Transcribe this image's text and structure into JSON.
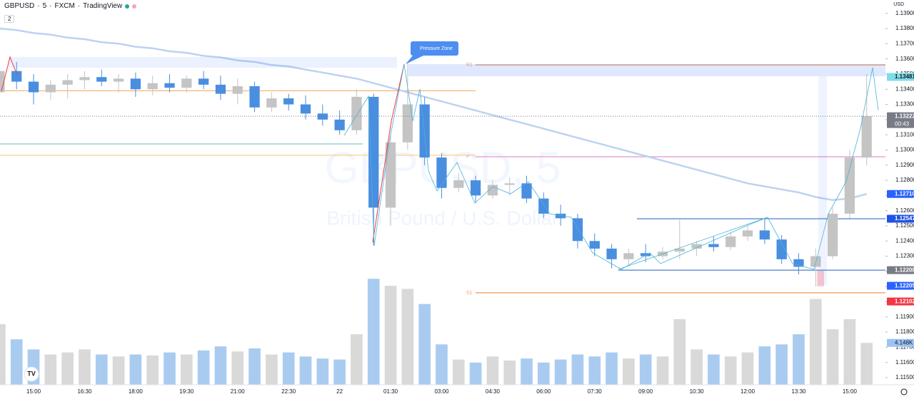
{
  "header": {
    "symbol": "GBPUSD",
    "interval": "5",
    "exchange": "FXCM",
    "source": "TradingView",
    "legend_count": "2",
    "currency": "USD"
  },
  "watermark": {
    "title": "GBPUSD, 5",
    "subtitle": "British Pound / U.S. Dollar"
  },
  "chart_data": {
    "type": "candlestick",
    "annotation": "Pressure Zone",
    "up_color": "#c4c4c4",
    "down_color": "#4a8ee0",
    "categories": [
      null,
      null,
      "15:00",
      null,
      null,
      "16:30",
      null,
      null,
      "18:00",
      null,
      null,
      "19:30",
      null,
      null,
      "21:00",
      null,
      null,
      "22:30",
      null,
      null,
      "22",
      null,
      null,
      "01:30",
      null,
      null,
      "03:00",
      null,
      null,
      "04:30",
      null,
      null,
      "06:00",
      null,
      null,
      "07:30",
      null,
      null,
      "09:00",
      null,
      null,
      "10:30",
      null,
      null,
      "12:00",
      null,
      null,
      "13:30",
      null,
      null,
      "15:00",
      null
    ],
    "open": [
      1.1338,
      1.1352,
      1.1345,
      1.1338,
      1.1343,
      1.1346,
      1.1348,
      1.1345,
      1.1347,
      1.134,
      1.1344,
      1.1341,
      1.1347,
      1.1343,
      1.1337,
      1.1342,
      1.1328,
      1.1334,
      1.133,
      1.1324,
      1.132,
      1.1313,
      1.1335,
      1.1262,
      1.1305,
      1.133,
      1.1295,
      1.1275,
      1.128,
      1.127,
      1.1277,
      1.1278,
      1.1268,
      1.1258,
      1.1255,
      1.124,
      1.1235,
      1.1228,
      1.1232,
      1.123,
      1.1233,
      1.1235,
      1.1238,
      1.1236,
      1.1243,
      1.1247,
      1.1241,
      1.1228,
      1.1223,
      1.123,
      1.1258,
      1.1295
    ],
    "high": [
      1.1357,
      1.1358,
      1.135,
      1.1346,
      1.135,
      1.1352,
      1.1353,
      1.135,
      1.1351,
      1.1349,
      1.135,
      1.1349,
      1.1352,
      1.1349,
      1.1347,
      1.1345,
      1.1338,
      1.1337,
      1.1336,
      1.133,
      1.1326,
      1.134,
      1.1337,
      1.131,
      1.1358,
      1.1335,
      1.1298,
      1.1285,
      1.1283,
      1.128,
      1.1282,
      1.1283,
      1.1272,
      1.1264,
      1.1258,
      1.1245,
      1.1238,
      1.1235,
      1.1238,
      1.1236,
      1.1254,
      1.124,
      1.1243,
      1.1246,
      1.125,
      1.1255,
      1.1244,
      1.1232,
      1.1235,
      1.1262,
      1.13,
      1.135
    ],
    "low": [
      1.1335,
      1.134,
      1.133,
      1.1333,
      1.1334,
      1.134,
      1.1342,
      1.1338,
      1.1335,
      1.1336,
      1.1338,
      1.1338,
      1.134,
      1.1333,
      1.133,
      1.1325,
      1.1325,
      1.1326,
      1.132,
      1.1316,
      1.131,
      1.131,
      1.1237,
      1.125,
      1.13,
      1.129,
      1.1268,
      1.1272,
      1.1265,
      1.1268,
      1.127,
      1.1265,
      1.1255,
      1.125,
      1.1235,
      1.123,
      1.1222,
      1.1224,
      1.1226,
      1.1228,
      1.1228,
      1.123,
      1.1233,
      1.1234,
      1.124,
      1.1238,
      1.1225,
      1.1218,
      1.121,
      1.1228,
      1.1255,
      1.129
    ],
    "close": [
      1.1352,
      1.1345,
      1.1338,
      1.1343,
      1.1346,
      1.1348,
      1.1345,
      1.1347,
      1.134,
      1.1344,
      1.1341,
      1.1347,
      1.1343,
      1.1337,
      1.1342,
      1.1328,
      1.1334,
      1.133,
      1.1324,
      1.132,
      1.1313,
      1.1335,
      1.1262,
      1.1305,
      1.133,
      1.1295,
      1.1275,
      1.128,
      1.127,
      1.1277,
      1.1278,
      1.1268,
      1.1258,
      1.1255,
      1.124,
      1.1235,
      1.1228,
      1.1232,
      1.123,
      1.1233,
      1.1235,
      1.1238,
      1.1236,
      1.1243,
      1.1247,
      1.1241,
      1.1228,
      1.1223,
      1.123,
      1.1258,
      1.1295,
      1.13222
    ],
    "ylim": [
      1.11453,
      1.13988
    ],
    "yticks": [
      {
        "value": 1.115,
        "label": "1.11500"
      },
      {
        "value": 1.116,
        "label": "1.11600"
      },
      {
        "value": 1.117,
        "label": "1.11700"
      },
      {
        "value": 1.118,
        "label": "1.11800"
      },
      {
        "value": 1.119,
        "label": "1.11900"
      },
      {
        "value": 1.12,
        "label": "1.12000"
      },
      {
        "value": 1.121,
        "label": "1.12100"
      },
      {
        "value": 1.122,
        "label": "1.12200"
      },
      {
        "value": 1.123,
        "label": "1.12300"
      },
      {
        "value": 1.124,
        "label": "1.12400"
      },
      {
        "value": 1.125,
        "label": "1.12500"
      },
      {
        "value": 1.126,
        "label": "1.12600"
      },
      {
        "value": 1.127,
        "label": "1.12700"
      },
      {
        "value": 1.128,
        "label": "1.12800"
      },
      {
        "value": 1.129,
        "label": "1.12900"
      },
      {
        "value": 1.13,
        "label": "1.13000"
      },
      {
        "value": 1.131,
        "label": "1.13100"
      },
      {
        "value": 1.132,
        "label": "1.13200"
      },
      {
        "value": 1.133,
        "label": "1.13300"
      },
      {
        "value": 1.134,
        "label": "1.13400"
      },
      {
        "value": 1.135,
        "label": "1.13500"
      },
      {
        "value": 1.136,
        "label": "1.13600"
      },
      {
        "value": 1.137,
        "label": "1.13700"
      },
      {
        "value": 1.138,
        "label": "1.13800"
      },
      {
        "value": 1.139,
        "label": "1.13900"
      }
    ],
    "moving_average": {
      "color": "#bcd3f0",
      "values": [
        1.138,
        1.1379,
        1.1377,
        1.1376,
        1.1374,
        1.1373,
        1.1371,
        1.137,
        1.1368,
        1.1367,
        1.1365,
        1.1364,
        1.1362,
        1.1361,
        1.1359,
        1.1358,
        1.1356,
        1.1355,
        1.1353,
        1.1351,
        1.1349,
        1.1347,
        1.1344,
        1.1341,
        1.1338,
        1.1335,
        1.1332,
        1.1329,
        1.1326,
        1.1323,
        1.132,
        1.1317,
        1.1314,
        1.1311,
        1.1308,
        1.1305,
        1.1302,
        1.1299,
        1.1296,
        1.1293,
        1.129,
        1.1287,
        1.1284,
        1.1281,
        1.1278,
        1.1276,
        1.1274,
        1.1272,
        1.1269,
        1.1267,
        1.1268,
        1.1271
      ]
    },
    "volume": {
      "up_color": "#d9d9d9",
      "down_color": "#a9cbf0",
      "vlim": [
        0,
        12
      ],
      "values": [
        6,
        4.5,
        3.5,
        3,
        3.2,
        3.5,
        3,
        2.8,
        3,
        2.9,
        3.2,
        3,
        3.4,
        3.8,
        3.3,
        3.6,
        3,
        3.2,
        2.8,
        2.6,
        2.5,
        5,
        10.5,
        9.8,
        9.5,
        8,
        4,
        2.5,
        2.2,
        2.8,
        2.4,
        2.6,
        2.2,
        2.5,
        3,
        2.8,
        3.2,
        2.6,
        3,
        2.8,
        6.5,
        3.5,
        3,
        2.8,
        3.2,
        3.8,
        4,
        5,
        8.5,
        5.5,
        6.5,
        4.148
      ]
    },
    "volume_marker": {
      "value": 4.148,
      "label": "4.148K",
      "color": "#9cc3f2"
    },
    "levels": [
      {
        "value": 1.1356,
        "label": "R1",
        "color": "#f3a56b"
      },
      {
        "value": 1.12955,
        "label": "P",
        "color": "#e9a6d9"
      },
      {
        "value": 1.12059,
        "label": "S1",
        "color": "#f3a56b"
      }
    ],
    "lines": [
      {
        "value": 1.1339,
        "color": "#f5a35a"
      },
      {
        "value": 1.1304,
        "color": "#5fb8c9"
      },
      {
        "value": 1.12965,
        "color": "#f7c66a"
      },
      {
        "value": 1.12547,
        "color": "#1f5fbf"
      },
      {
        "value": 1.12208,
        "color": "#1f5fbf"
      }
    ],
    "price_labels": [
      {
        "value": 1.13481,
        "color": "#7fdde9",
        "text_color": "#131722"
      },
      {
        "value": 1.13222,
        "color": "#787b86",
        "text_color": "#ffffff",
        "countdown": "00:43"
      },
      {
        "value": {
          "value": 1.1271,
          "label": "1.12710"
        },
        "color": "#2962ff",
        "text_color": "#ffffff"
      },
      {
        "value": 1.12547,
        "color": "#1e53e5",
        "text_color": "#ffffff"
      },
      {
        "value": 1.12208,
        "color": "#787b86",
        "text_color": "#ffffff"
      },
      {
        "value": 1.12205,
        "color": "#2962ff",
        "text_color": "#ffffff"
      },
      {
        "value": 1.12102,
        "color": "#f23645",
        "text_color": "#ffffff"
      }
    ]
  }
}
